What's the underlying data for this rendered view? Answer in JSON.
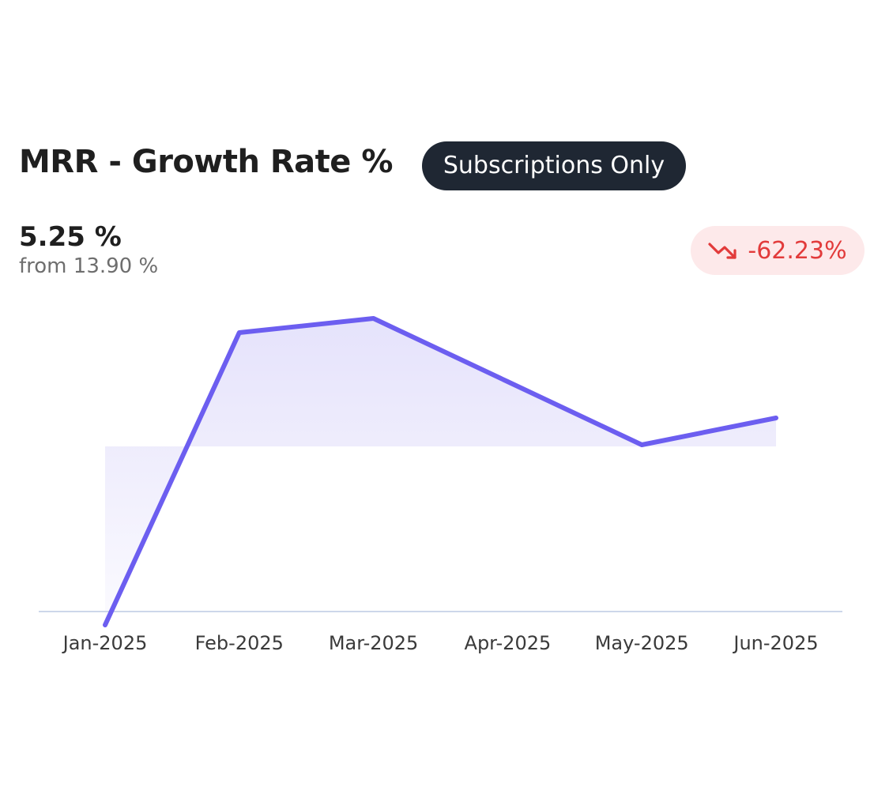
{
  "header": {
    "title": "MRR - Growth Rate %",
    "badge": "Subscriptions Only"
  },
  "metric": {
    "value": "5.25 %",
    "from": "from 13.90 %",
    "change": "-62.23%",
    "change_icon": "trending-down-icon",
    "change_color": "#e23b3b",
    "change_bg": "#fde9ea"
  },
  "chart_data": {
    "type": "line",
    "categories": [
      "Jan-2025",
      "Feb-2025",
      "Mar-2025",
      "Apr-2025",
      "May-2025",
      "Jun-2025"
    ],
    "series": [
      {
        "values": [
          -5.5,
          13.0,
          13.9,
          9.9,
          5.9,
          7.6
        ]
      }
    ],
    "baseline": 5.8,
    "ylim": [
      -8,
      16
    ],
    "line_color": "#6c5ef0",
    "fill_color": "#e4e1fb",
    "axis_color": "#cdd7ea",
    "grid": false,
    "legend": "none"
  }
}
